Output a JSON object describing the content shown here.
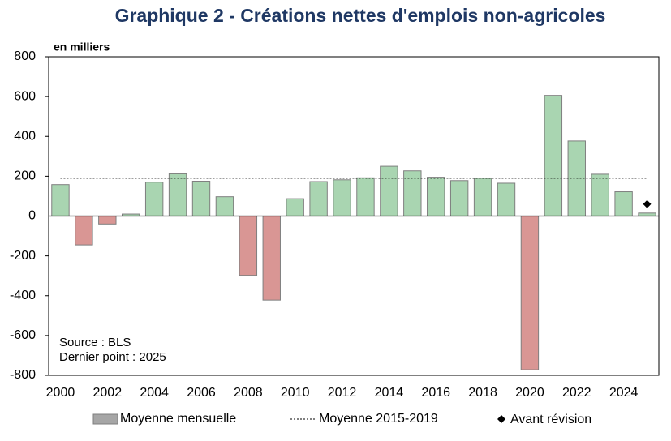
{
  "chart_data": {
    "type": "bar",
    "title": "Graphique 2 - Créations nettes d'emplois non-agricoles",
    "y_label": "en milliers",
    "annotations": [
      "Source : BLS",
      "Dernier point : 2025"
    ],
    "categories": [
      "2000",
      null,
      "2002",
      null,
      "2004",
      null,
      "2006",
      null,
      "2008",
      null,
      "2010",
      null,
      "2012",
      null,
      "2014",
      null,
      "2016",
      null,
      "2018",
      null,
      "2020",
      null,
      "2022",
      null,
      "2024",
      null
    ],
    "series": [
      {
        "name": "Moyenne mensuelle",
        "color": "#a6a6a6",
        "positive_color": "#a9d5b1",
        "negative_color": "#d99694",
        "values": [
          158,
          -145,
          -40,
          10,
          170,
          212,
          175,
          97,
          -298,
          -422,
          87,
          173,
          182,
          192,
          250,
          227,
          195,
          178,
          190,
          165,
          -772,
          606,
          377,
          210,
          122,
          15
        ]
      },
      {
        "name": "Avant révision",
        "color": "#000000",
        "type": "scatter",
        "values": [
          null,
          null,
          null,
          null,
          null,
          null,
          null,
          null,
          null,
          null,
          null,
          null,
          null,
          null,
          null,
          null,
          null,
          null,
          null,
          null,
          null,
          null,
          null,
          null,
          null,
          60
        ]
      }
    ],
    "reference_line": {
      "name": "Moyenne 2015-2019",
      "value": 190,
      "color": "#000000"
    },
    "ylim": [
      -800,
      800
    ],
    "yticks": [
      -800,
      -600,
      -400,
      -200,
      0,
      200,
      400,
      600,
      800
    ]
  }
}
